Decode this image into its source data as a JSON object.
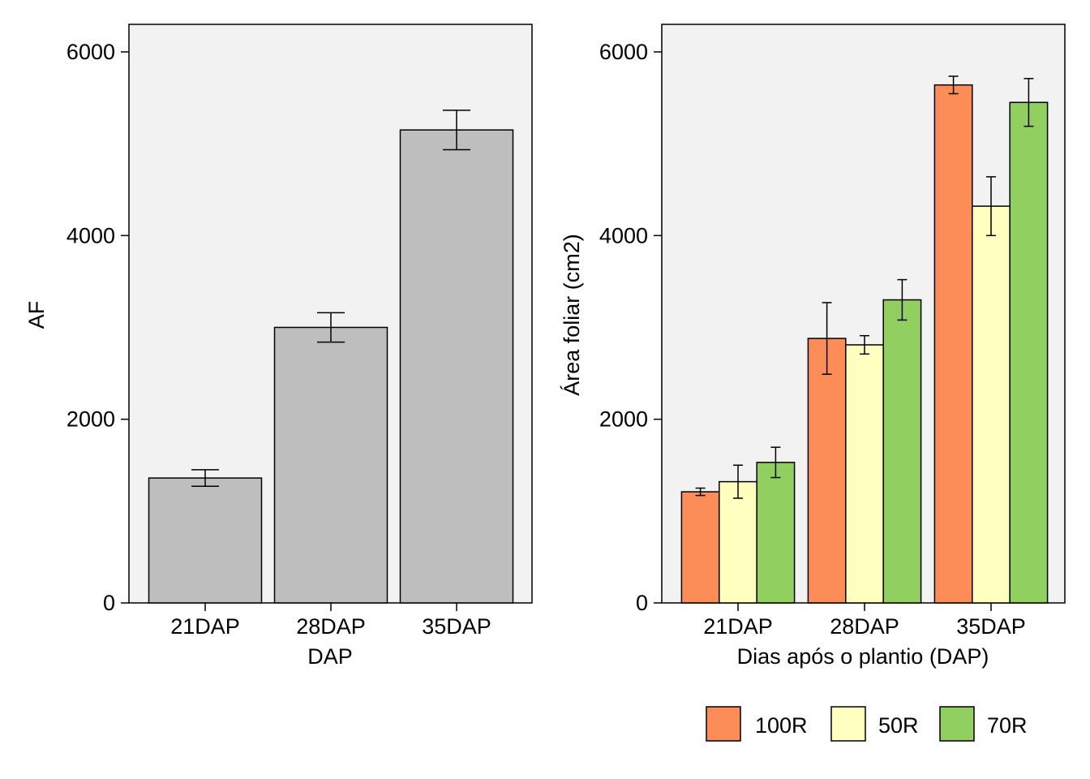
{
  "colors": {
    "panel_bg": "#f2f2f2",
    "left_bar": "#bebebe",
    "series_100R": "#fc8d59",
    "series_50R": "#ffffbf",
    "series_70R": "#91cf60"
  },
  "chart_data": [
    {
      "type": "bar",
      "categories": [
        "21DAP",
        "28DAP",
        "35DAP"
      ],
      "values": [
        1360,
        3000,
        5150
      ],
      "error": [
        90,
        160,
        215
      ],
      "xlabel": "DAP",
      "ylabel": "AF",
      "ylim": [
        0,
        6300
      ],
      "yticks": [
        0,
        2000,
        4000,
        6000
      ],
      "ytick_labels": [
        "0",
        "2000",
        "4000",
        "6000"
      ],
      "grid": false
    },
    {
      "type": "bar",
      "categories": [
        "21DAP",
        "28DAP",
        "35DAP"
      ],
      "series": [
        {
          "name": "100R",
          "values": [
            1210,
            2880,
            5640
          ],
          "error": [
            40,
            390,
            95
          ]
        },
        {
          "name": "50R",
          "values": [
            1320,
            2810,
            4320
          ],
          "error": [
            180,
            100,
            320
          ]
        },
        {
          "name": "70R",
          "values": [
            1530,
            3300,
            5450
          ],
          "error": [
            165,
            220,
            260
          ]
        }
      ],
      "xlabel": "Dias após o plantio (DAP)",
      "ylabel": "Área foliar (cm2)",
      "ylim": [
        0,
        6300
      ],
      "yticks": [
        0,
        2000,
        4000,
        6000
      ],
      "ytick_labels": [
        "0",
        "2000",
        "4000",
        "6000"
      ],
      "legend_position": "bottom",
      "grid": false
    }
  ]
}
